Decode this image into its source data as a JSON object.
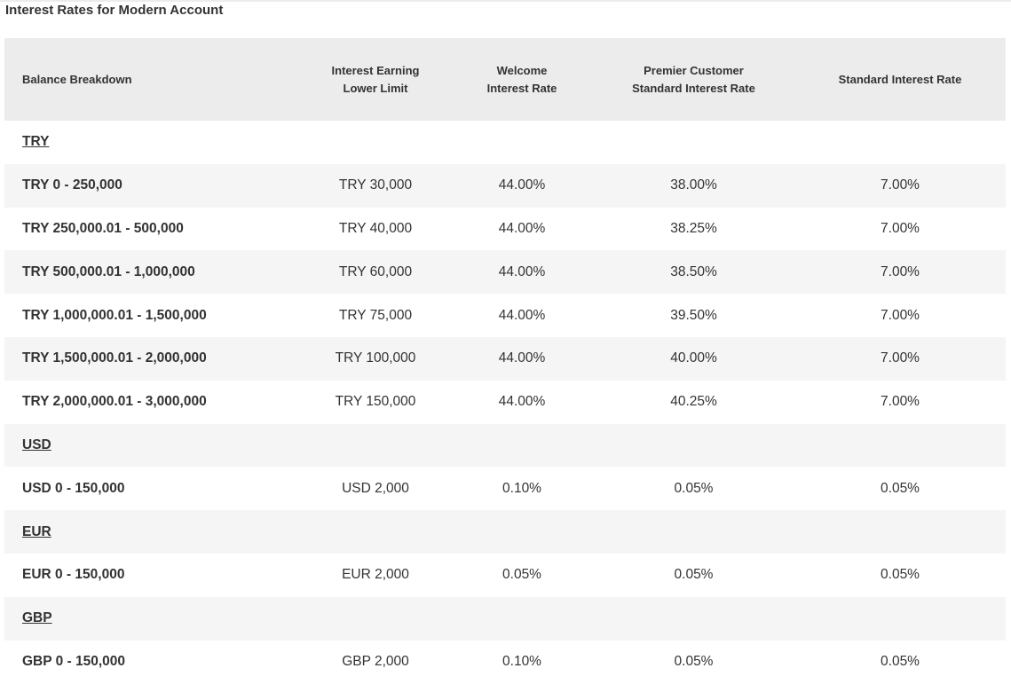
{
  "title": "Interest Rates for Modern Account",
  "headers": [
    "Balance Breakdown",
    "Interest Earning Lower Limit",
    "Welcome Interest Rate",
    "Premier Customer Standard Interest Rate",
    "Standard Interest Rate"
  ],
  "rows": [
    {
      "type": "group",
      "label": "TRY"
    },
    {
      "type": "data",
      "cells": [
        "TRY 0 - 250,000",
        "TRY 30,000",
        "44.00%",
        "38.00%",
        "7.00%"
      ]
    },
    {
      "type": "data",
      "cells": [
        "TRY 250,000.01 - 500,000",
        "TRY 40,000",
        "44.00%",
        "38.25%",
        "7.00%"
      ]
    },
    {
      "type": "data",
      "cells": [
        "TRY 500,000.01 - 1,000,000",
        "TRY 60,000",
        "44.00%",
        "38.50%",
        "7.00%"
      ]
    },
    {
      "type": "data",
      "cells": [
        "TRY 1,000,000.01 - 1,500,000",
        "TRY 75,000",
        "44.00%",
        "39.50%",
        "7.00%"
      ]
    },
    {
      "type": "data",
      "cells": [
        "TRY 1,500,000.01 - 2,000,000",
        "TRY 100,000",
        "44.00%",
        "40.00%",
        "7.00%"
      ]
    },
    {
      "type": "data",
      "cells": [
        "TRY 2,000,000.01 - 3,000,000",
        "TRY 150,000",
        "44.00%",
        "40.25%",
        "7.00%"
      ]
    },
    {
      "type": "group",
      "label": "USD"
    },
    {
      "type": "data",
      "cells": [
        "USD 0 - 150,000",
        "USD 2,000",
        "0.10%",
        "0.05%",
        "0.05%"
      ]
    },
    {
      "type": "group",
      "label": "EUR"
    },
    {
      "type": "data",
      "cells": [
        "EUR 0 - 150,000",
        "EUR 2,000",
        "0.05%",
        "0.05%",
        "0.05%"
      ]
    },
    {
      "type": "group",
      "label": "GBP"
    },
    {
      "type": "data",
      "cells": [
        "GBP 0 - 150,000",
        "GBP 2,000",
        "0.10%",
        "0.05%",
        "0.05%"
      ]
    }
  ]
}
